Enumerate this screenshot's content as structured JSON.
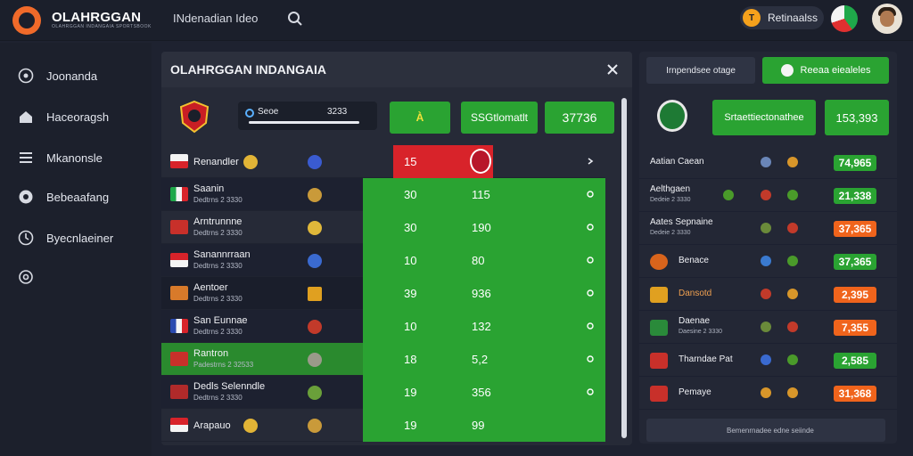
{
  "brand": {
    "name": "OLAHRGGAN",
    "tagline": "OLAHRGGAN INDANGAIA SPORTSBOOK"
  },
  "topnav": {
    "link": "INdenadian Ideo"
  },
  "top_pill": {
    "icon": "trophy-icon",
    "label": "Retinaalss"
  },
  "sidebar": {
    "items": [
      {
        "label": "Joonanda",
        "icon": "soccer-ball-icon"
      },
      {
        "label": "Haceoragsh",
        "icon": "home-icon"
      },
      {
        "label": "Mkanonsle",
        "icon": "list-icon"
      },
      {
        "label": "Bebeaafang",
        "icon": "ball-icon"
      },
      {
        "label": "Byecnlaeiner",
        "icon": "clock-icon"
      },
      {
        "label": "",
        "icon": "gear-icon"
      }
    ]
  },
  "main": {
    "title": "OLAHRGGAN INDANGAIA",
    "score_label": "Seoe",
    "score_value": "3233",
    "buttons": [
      {
        "label": "À",
        "icon": "star-icon"
      },
      {
        "label": "SSGtlomatlt"
      },
      {
        "label": "37736"
      }
    ],
    "rows": [
      {
        "team": "Renandler",
        "sub": "",
        "v1": "15",
        "v2": "",
        "style": "red"
      },
      {
        "team": "Saanin",
        "sub": "Dedtrns 2 3330",
        "v1": "30",
        "v2": "115",
        "style": "green"
      },
      {
        "team": "Arntrunnne",
        "sub": "Dedtrns 2 3330",
        "v1": "30",
        "v2": "190",
        "style": "green"
      },
      {
        "team": "Sanannrraan",
        "sub": "Dedtrns 2 3330",
        "v1": "10",
        "v2": "80",
        "style": "green"
      },
      {
        "team": "Aentoer",
        "sub": "Dedtrns 2 3330",
        "v1": "39",
        "v2": "936",
        "style": "green-dark"
      },
      {
        "team": "San Eunnae",
        "sub": "Dedtrns 2 3330",
        "v1": "10",
        "v2": "132",
        "style": "green"
      },
      {
        "team": "Rantron",
        "sub": "Padestrns 2 32533",
        "v1": "18",
        "v2": "5,2",
        "style": "allgreen"
      },
      {
        "team": "Dedls Selenndle",
        "sub": "Dedtrns 2 3330",
        "v1": "19",
        "v2": "356",
        "style": "green"
      },
      {
        "team": "Arapauo",
        "sub": "",
        "v1": "19",
        "v2": "99",
        "style": "green"
      }
    ]
  },
  "right": {
    "pill": "Irnpendsee otage",
    "top_button": "Reeaa eiealeles",
    "mid_button": "Srtaettiectonathee",
    "odds_button": "153,393",
    "rows": [
      {
        "team": "Aatian Caean",
        "sub": "",
        "odd": "74,965",
        "oddColor": "green"
      },
      {
        "team": "Aelthgaen",
        "sub": "Dedeie 2 3330",
        "odd": "21,338",
        "oddColor": "green"
      },
      {
        "team": "Aates Sepnaine",
        "sub": "Dedeie 2 3330",
        "odd": "37,365",
        "oddColor": "orange"
      },
      {
        "team": "Benace",
        "sub": "",
        "odd": "37,365",
        "oddColor": "green"
      },
      {
        "team": "Dansotd",
        "sub": "",
        "odd": "2,395",
        "oddColor": "orange"
      },
      {
        "team": "Daenae",
        "sub": "Daesine 2 3330",
        "odd": "7,355",
        "oddColor": "orange"
      },
      {
        "team": "Tharndae Pat",
        "sub": "",
        "odd": "2,585",
        "oddColor": "green"
      },
      {
        "team": "Pemaye",
        "sub": "",
        "odd": "31,368",
        "oddColor": "orange"
      }
    ],
    "footer": "Bemenrnadee edne seiinde"
  },
  "colors": {
    "accent_green": "#2aa332",
    "accent_red": "#d8232a",
    "accent_orange": "#f0641c",
    "brand_orange": "#f06a2a"
  }
}
